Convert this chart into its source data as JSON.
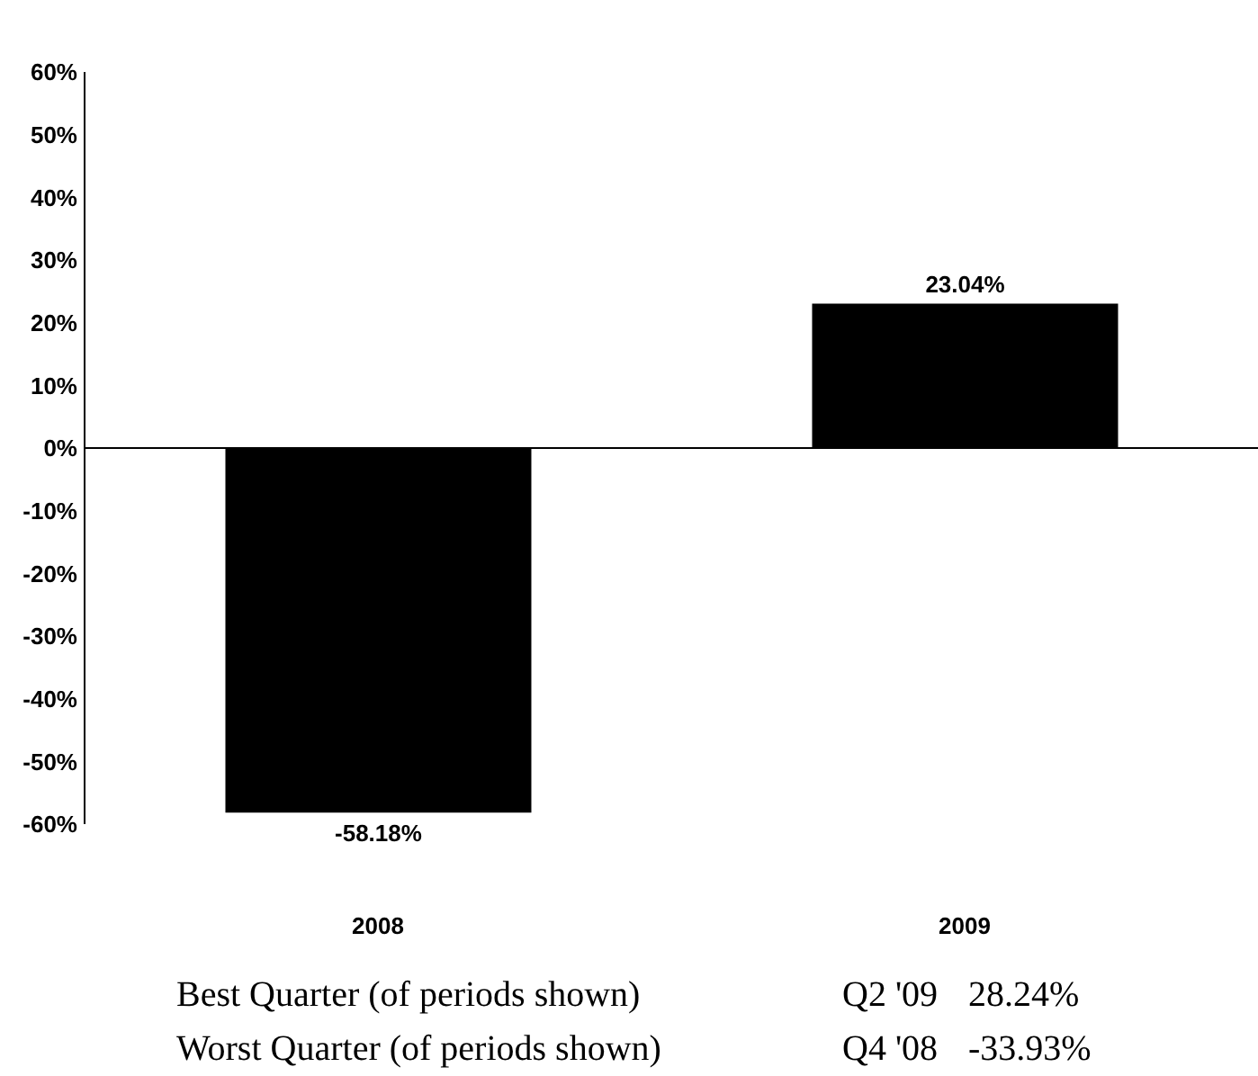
{
  "chart_data": {
    "type": "bar",
    "categories": [
      "2008",
      "2009"
    ],
    "values": [
      -58.18,
      23.04
    ],
    "color": "#000000",
    "value_labels": [
      "-58.18%",
      "23.04%"
    ],
    "ylim": [
      -60,
      60
    ],
    "yticks": [
      {
        "value": -60,
        "label": "-60%"
      },
      {
        "value": -50,
        "label": "-50%"
      },
      {
        "value": -40,
        "label": "-40%"
      },
      {
        "value": -30,
        "label": "-30%"
      },
      {
        "value": -20,
        "label": "-20%"
      },
      {
        "value": -10,
        "label": "-10%"
      },
      {
        "value": 0,
        "label": "0%"
      },
      {
        "value": 10,
        "label": "10%"
      },
      {
        "value": 20,
        "label": "20%"
      },
      {
        "value": 30,
        "label": "30%"
      },
      {
        "value": 40,
        "label": "40%"
      },
      {
        "value": 50,
        "label": "50%"
      },
      {
        "value": 60,
        "label": "60%"
      }
    ],
    "legend": false,
    "annotations": [
      "Best Quarter (of periods shown)",
      "Q2 '09",
      "28.24%",
      "Worst Quarter (of periods shown)",
      "Q4 '08",
      "-33.93%"
    ]
  }
}
